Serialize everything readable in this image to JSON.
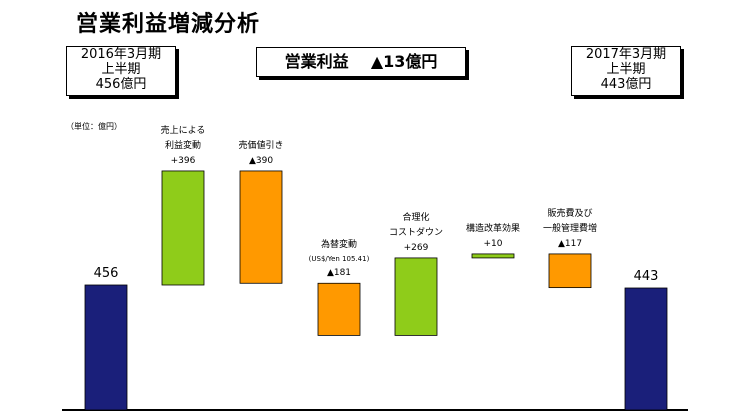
{
  "title": "営業利益増減分析",
  "left_box": {
    "line1": "2016年3月期",
    "line2": "上半期",
    "line3": "456億円"
  },
  "right_box": {
    "line1": "2017年3月期",
    "line2": "上半期",
    "line3": "443億円"
  },
  "center_box": {
    "label": "営業利益",
    "value": "▲13億円"
  },
  "unit": "（単位：億円）",
  "chart_data": {
    "type": "bar",
    "subtype": "waterfall",
    "categories": [
      "2016年3月期 上半期",
      "売上による利益変動",
      "売価値引き",
      "為替変動",
      "合理化コストダウン",
      "構造改革効果",
      "販売費及び一般管理費増",
      "2017年3月期 上半期"
    ],
    "bars": [
      {
        "kind": "total",
        "value": 456,
        "label": [
          "456"
        ],
        "color": "#1a1f7a"
      },
      {
        "kind": "delta",
        "value": 396,
        "label": [
          "売上による",
          "利益変動",
          "+396"
        ],
        "color": "#8fcc1a"
      },
      {
        "kind": "delta",
        "value": -390,
        "label": [
          "売価値引き",
          "▲390"
        ],
        "color": "#ff9900"
      },
      {
        "kind": "delta",
        "value": -181,
        "label": [
          "為替変動",
          "(US$/Yen 105.41)",
          "▲181"
        ],
        "color": "#ff9900"
      },
      {
        "kind": "delta",
        "value": 269,
        "label": [
          "合理化",
          "コストダウン",
          "+269"
        ],
        "color": "#8fcc1a"
      },
      {
        "kind": "delta",
        "value": 10,
        "label": [
          "構造改革効果",
          "+10"
        ],
        "color": "#8fcc1a"
      },
      {
        "kind": "delta",
        "value": -117,
        "label": [
          "販売費及び",
          "一般管理費増",
          "▲117"
        ],
        "color": "#ff9900"
      },
      {
        "kind": "total",
        "value": 443,
        "label": [
          "443"
        ],
        "color": "#1a1f7a"
      }
    ],
    "grid": false,
    "legend": "none"
  }
}
